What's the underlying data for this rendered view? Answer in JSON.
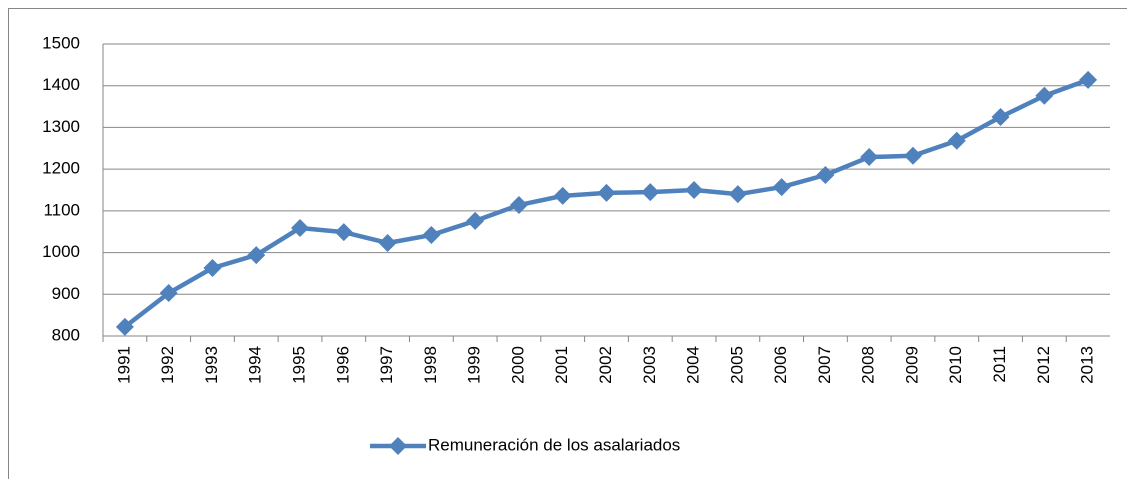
{
  "chart_data": {
    "type": "line",
    "categories": [
      "1991",
      "1992",
      "1993",
      "1994",
      "1995",
      "1996",
      "1997",
      "1998",
      "1999",
      "2000",
      "2001",
      "2002",
      "2003",
      "2004",
      "2005",
      "2006",
      "2007",
      "2008",
      "2009",
      "2010",
      "2011",
      "2012",
      "2013"
    ],
    "series": [
      {
        "name": "Remuneración de los asalariados",
        "color": "#4f81bd",
        "values": [
          822,
          903,
          963,
          994,
          1059,
          1049,
          1023,
          1042,
          1076,
          1114,
          1136,
          1143,
          1145,
          1150,
          1140,
          1157,
          1186,
          1229,
          1232,
          1268,
          1325,
          1376,
          1414
        ]
      }
    ],
    "ylim": [
      800,
      1500
    ],
    "yticks": [
      800,
      900,
      1000,
      1100,
      1200,
      1300,
      1400,
      1500
    ],
    "grid": true,
    "legend": "bottom"
  }
}
